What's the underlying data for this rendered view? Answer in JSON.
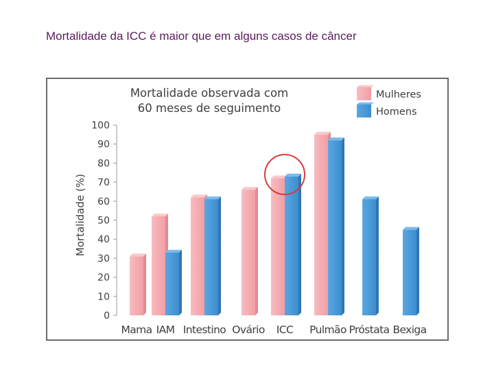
{
  "slide": {
    "title": "Mortalidade da ICC é maior que em alguns casos de câncer"
  },
  "chart_data": {
    "type": "bar",
    "title_lines": [
      "Mortalidade observada com",
      "60 meses de seguimento"
    ],
    "ylabel": "Mortalidade (%)",
    "xlabel": "",
    "ylim": [
      0,
      100
    ],
    "yticks": [
      0,
      10,
      20,
      30,
      40,
      50,
      60,
      70,
      80,
      90,
      100
    ],
    "categories": [
      "Mama",
      "IAM",
      "Intestino",
      "Ovário",
      "ICC",
      "Pulmão",
      "Próstata",
      "Bexiga"
    ],
    "series": [
      {
        "name": "Mulheres",
        "color": "#f4a9ae",
        "values": [
          31,
          52,
          62,
          66,
          72,
          95,
          null,
          null
        ]
      },
      {
        "name": "Homens",
        "color": "#4a9ad8",
        "values": [
          null,
          33,
          61,
          null,
          73,
          92,
          61,
          45
        ]
      }
    ],
    "legend_position": "top-right",
    "highlight": {
      "category": "ICC",
      "shape": "circle",
      "color": "#d93a3a"
    },
    "grid": false
  }
}
